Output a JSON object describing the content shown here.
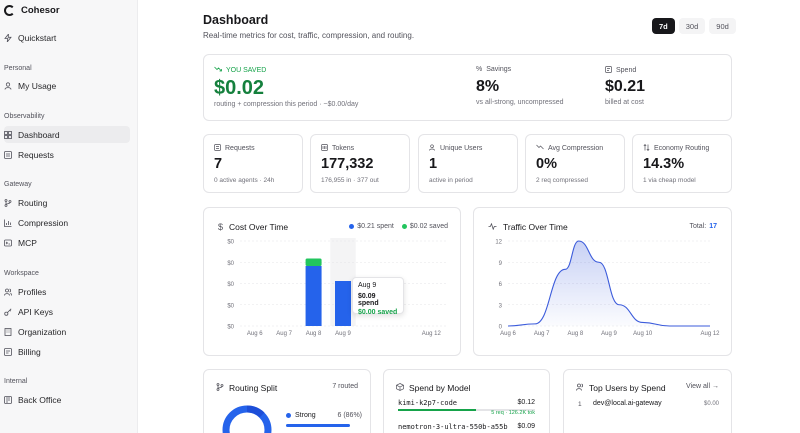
{
  "app": {
    "name": "Cohesor"
  },
  "sidebar": {
    "top": [
      {
        "label": "Quickstart",
        "icon": "lightning-icon"
      }
    ],
    "sections": [
      {
        "title": "Personal",
        "items": [
          {
            "label": "My Usage",
            "icon": "user-icon"
          }
        ]
      },
      {
        "title": "Observability",
        "items": [
          {
            "label": "Dashboard",
            "icon": "grid-icon",
            "active": true
          },
          {
            "label": "Requests",
            "icon": "list-icon"
          }
        ]
      },
      {
        "title": "Gateway",
        "items": [
          {
            "label": "Routing",
            "icon": "branch-icon"
          },
          {
            "label": "Compression",
            "icon": "bars-icon"
          },
          {
            "label": "MCP",
            "icon": "plug-icon"
          }
        ]
      },
      {
        "title": "Workspace",
        "items": [
          {
            "label": "Profiles",
            "icon": "users-icon"
          },
          {
            "label": "API Keys",
            "icon": "key-icon"
          },
          {
            "label": "Organization",
            "icon": "building-icon"
          },
          {
            "label": "Billing",
            "icon": "card-icon"
          }
        ]
      },
      {
        "title": "Internal",
        "items": [
          {
            "label": "Back Office",
            "icon": "door-icon"
          }
        ]
      }
    ]
  },
  "header": {
    "title": "Dashboard",
    "subtitle": "Real-time metrics for cost, traffic, compression, and routing.",
    "ranges": [
      {
        "label": "7d",
        "active": true
      },
      {
        "label": "30d",
        "active": false
      },
      {
        "label": "90d",
        "active": false
      }
    ]
  },
  "summary": {
    "saved_label": "YOU SAVED",
    "saved_amount": "$0.02",
    "saved_desc": "routing + compression this period · ~$0.00/day",
    "savings_label": "Savings",
    "savings_value": "8%",
    "savings_sub": "vs all-strong, uncompressed",
    "spend_label": "Spend",
    "spend_value": "$0.21",
    "spend_sub": "billed at cost"
  },
  "metrics": [
    {
      "label": "Requests",
      "value": "7",
      "sub": "0 active agents · 24h",
      "icon": "requests-icon"
    },
    {
      "label": "Tokens",
      "value": "177,332",
      "sub": "176,955 in · 377 out",
      "icon": "tokens-icon"
    },
    {
      "label": "Unique Users",
      "value": "1",
      "sub": "active in period",
      "icon": "users-icon"
    },
    {
      "label": "Avg Compression",
      "value": "0%",
      "sub": "2 req compressed",
      "icon": "compress-icon"
    },
    {
      "label": "Economy Routing",
      "value": "14.3%",
      "sub": "1 via cheap model",
      "icon": "route-icon"
    }
  ],
  "cost_chart": {
    "title": "Cost Over Time",
    "legend_spent": "$0.21 spent",
    "legend_saved": "$0.02 saved",
    "tooltip": {
      "date": "Aug 9",
      "spend": "$0.09 spend",
      "saved": "$0.00 saved"
    }
  },
  "traffic_chart": {
    "title": "Traffic Over Time",
    "total_label": "Total:",
    "total_value": "17"
  },
  "chart_data": [
    {
      "type": "bar",
      "title": "Cost Over Time",
      "categories": [
        "Aug 6",
        "Aug 7",
        "Aug 8",
        "Aug 9",
        "",
        "",
        "Aug 12"
      ],
      "yticks": [
        "$0",
        "$0",
        "$0",
        "$0",
        "$0"
      ],
      "ylim": [
        0,
        0.17
      ],
      "series": [
        {
          "name": "$0.21 spent",
          "color": "#2563eb",
          "values": [
            0,
            0,
            0.12,
            0.09,
            0,
            0,
            0
          ]
        },
        {
          "name": "$0.02 saved",
          "color": "#22c55e",
          "values": [
            0,
            0,
            0.015,
            0,
            0,
            0,
            0
          ]
        }
      ],
      "highlight_index": 3
    },
    {
      "type": "area",
      "title": "Traffic Over Time",
      "categories": [
        "Aug 6",
        "Aug 7",
        "Aug 8",
        "Aug 9",
        "Aug 10",
        "Aug 12"
      ],
      "x_positions": [
        0,
        1,
        2,
        3,
        4,
        6
      ],
      "yticks": [
        0,
        3,
        6,
        9,
        12
      ],
      "ylim": [
        0,
        12
      ],
      "xlim": [
        0,
        6
      ],
      "points": [
        [
          0,
          0
        ],
        [
          0.8,
          0.3
        ],
        [
          1.7,
          8
        ],
        [
          2.1,
          12
        ],
        [
          2.7,
          9
        ],
        [
          3.3,
          3
        ],
        [
          4,
          0.5
        ],
        [
          4.8,
          0
        ],
        [
          6,
          0
        ]
      ]
    }
  ],
  "routing_split": {
    "title": "Routing Split",
    "count": "7 routed",
    "items": [
      {
        "label": "Strong",
        "value": "6 (86%)",
        "color": "#2563eb"
      }
    ]
  },
  "spend_by_model": {
    "title": "Spend by Model",
    "rows": [
      {
        "name": "kimi-k2p7-code",
        "value": "$0.12",
        "sub": "5 req · 126.2K tok",
        "fill": 0.57
      },
      {
        "name": "nemotron-3-ultra-550b-a55b",
        "value": "$0.09",
        "sub": "",
        "fill": 0.43
      }
    ]
  },
  "top_users": {
    "title": "Top Users by Spend",
    "view_all": "View all →",
    "rows": [
      {
        "rank": "1",
        "name": "dev@local.ai-gateway",
        "value": "$0.00"
      }
    ]
  }
}
